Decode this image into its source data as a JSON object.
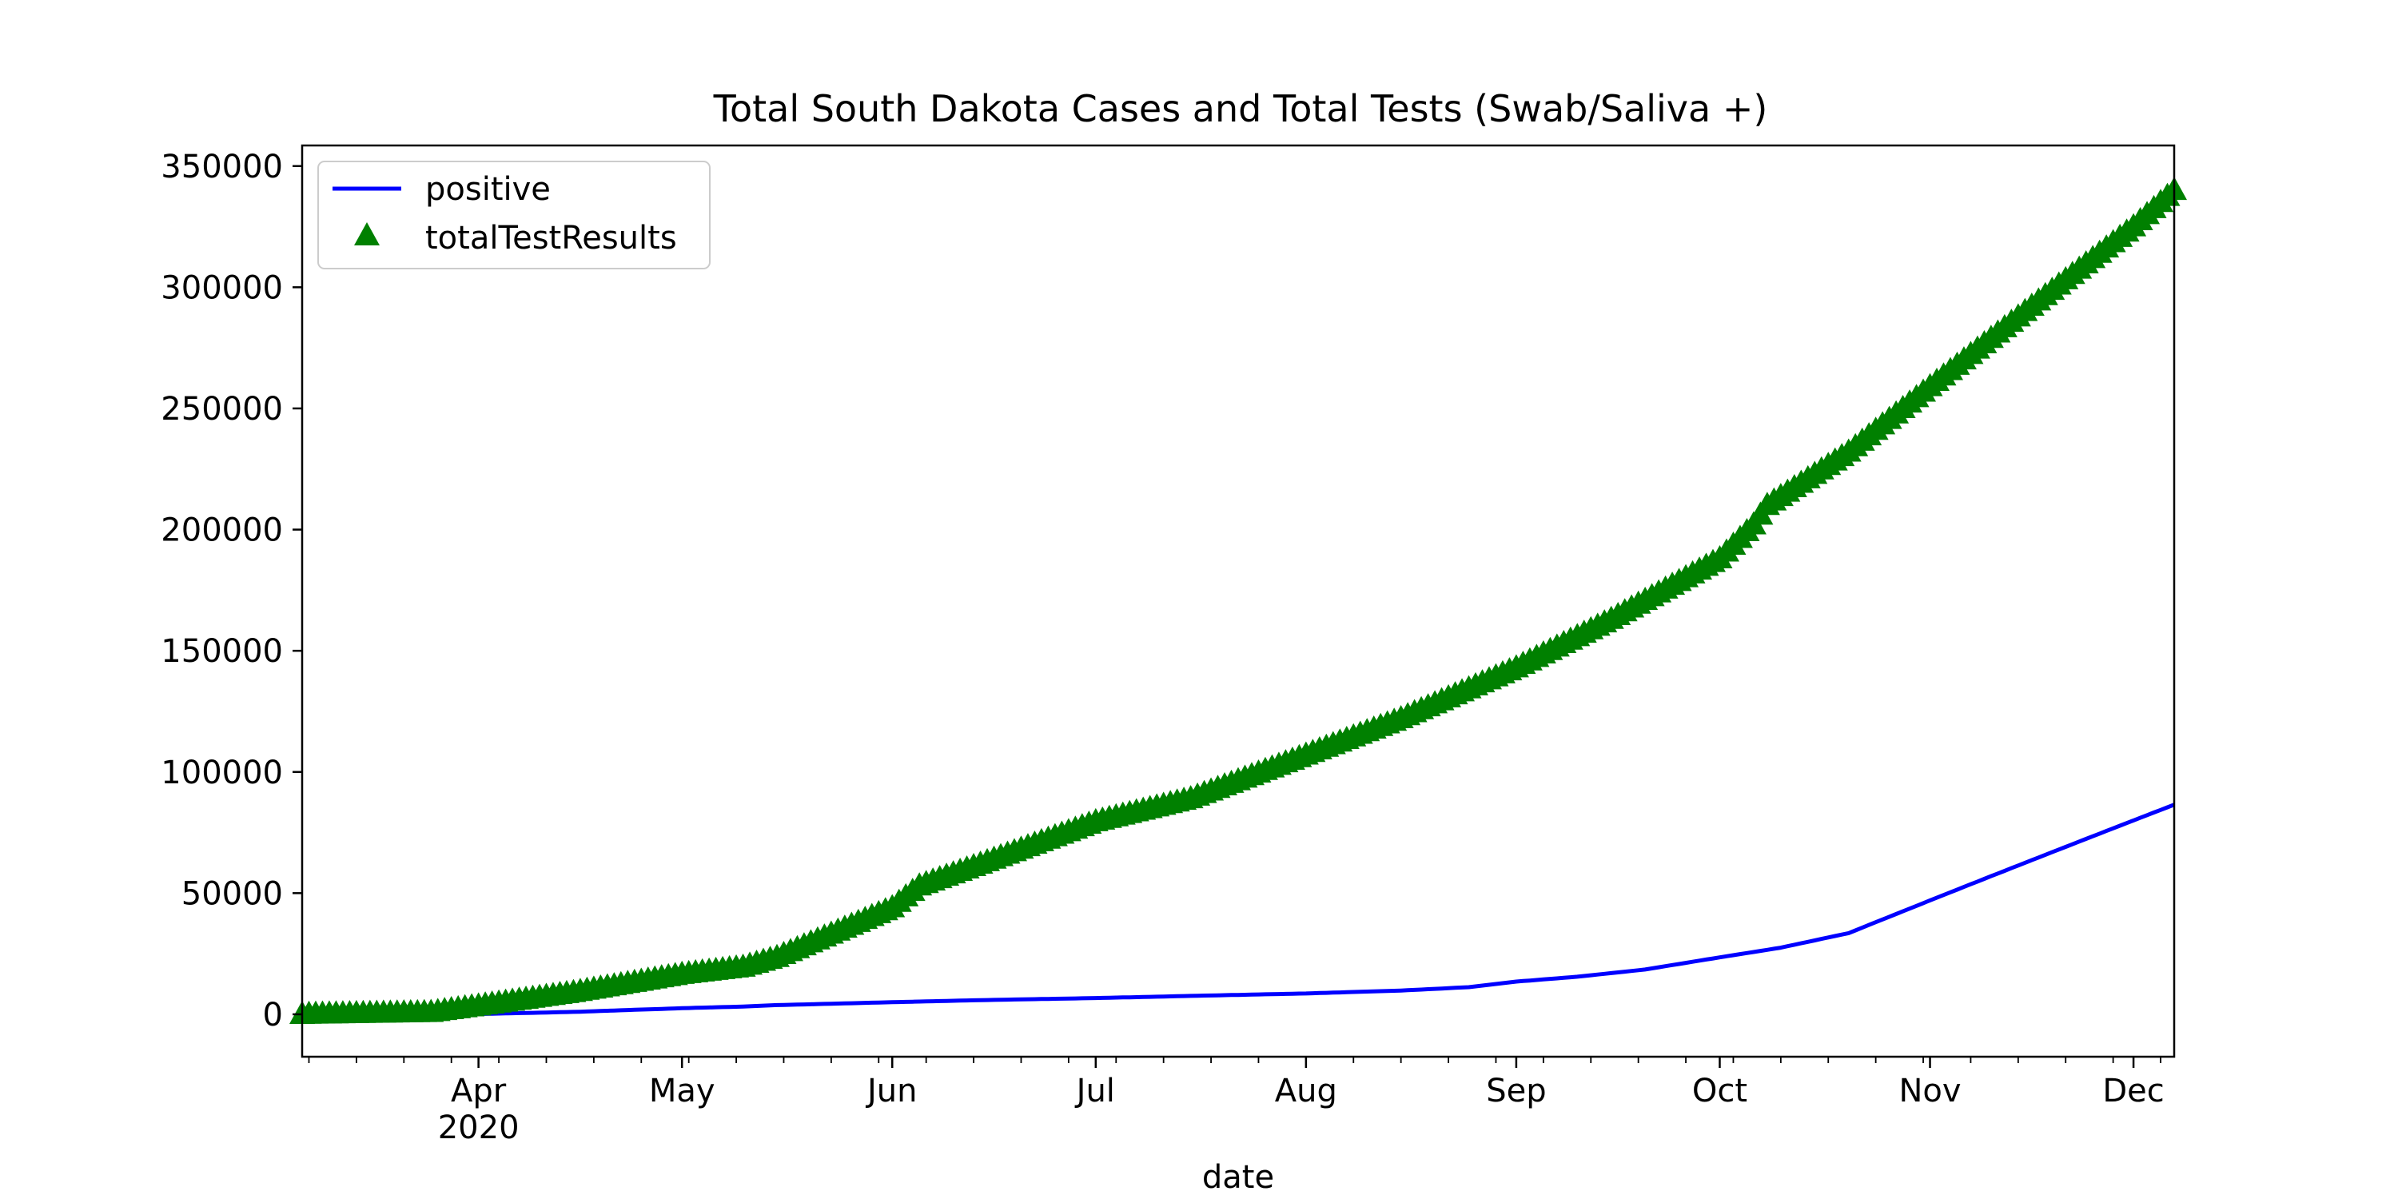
{
  "chart_data": {
    "type": "line",
    "title": "Total South Dakota Cases and Total Tests (Swab/Saliva +)",
    "xlabel": "date",
    "ylabel": "",
    "x_range": [
      "2020-03-06",
      "2020-12-07"
    ],
    "ylim": [
      -17500,
      358500
    ],
    "grid": false,
    "legend_position": "upper-left",
    "x_ticks": [
      {
        "date": "2020-04-01",
        "label": "Apr",
        "sublabel": "2020"
      },
      {
        "date": "2020-05-01",
        "label": "May",
        "sublabel": ""
      },
      {
        "date": "2020-06-01",
        "label": "Jun",
        "sublabel": ""
      },
      {
        "date": "2020-07-01",
        "label": "Jul",
        "sublabel": ""
      },
      {
        "date": "2020-08-01",
        "label": "Aug",
        "sublabel": ""
      },
      {
        "date": "2020-09-01",
        "label": "Sep",
        "sublabel": ""
      },
      {
        "date": "2020-10-01",
        "label": "Oct",
        "sublabel": ""
      },
      {
        "date": "2020-11-01",
        "label": "Nov",
        "sublabel": ""
      },
      {
        "date": "2020-12-01",
        "label": "Dec",
        "sublabel": ""
      }
    ],
    "y_ticks": [
      0,
      50000,
      100000,
      150000,
      200000,
      250000,
      300000,
      350000
    ],
    "series": [
      {
        "name": "positive",
        "style": "line",
        "color": "#0000ff",
        "points": [
          [
            "2020-03-06",
            0
          ],
          [
            "2020-03-15",
            9
          ],
          [
            "2020-03-22",
            21
          ],
          [
            "2020-04-01",
            129
          ],
          [
            "2020-04-15",
            988
          ],
          [
            "2020-05-01",
            2525
          ],
          [
            "2020-05-10",
            3200
          ],
          [
            "2020-05-15",
            3800
          ],
          [
            "2020-06-01",
            5000
          ],
          [
            "2020-06-15",
            5900
          ],
          [
            "2020-07-01",
            6700
          ],
          [
            "2020-07-15",
            7600
          ],
          [
            "2020-08-01",
            8600
          ],
          [
            "2020-08-15",
            9800
          ],
          [
            "2020-08-25",
            11200
          ],
          [
            "2020-09-01",
            13500
          ],
          [
            "2020-09-10",
            15500
          ],
          [
            "2020-09-20",
            18500
          ],
          [
            "2020-10-01",
            23500
          ],
          [
            "2020-10-10",
            27500
          ],
          [
            "2020-10-20",
            33500
          ],
          [
            "2020-11-01",
            47000
          ],
          [
            "2020-11-10",
            57000
          ],
          [
            "2020-11-20",
            68000
          ],
          [
            "2020-12-01",
            80000
          ],
          [
            "2020-12-07",
            86500
          ]
        ]
      },
      {
        "name": "totalTestResults",
        "style": "marker",
        "marker": "triangle-up",
        "color": "#008000",
        "points": [
          [
            "2020-03-06",
            0
          ],
          [
            "2020-03-15",
            400
          ],
          [
            "2020-03-25",
            800
          ],
          [
            "2020-04-01",
            3500
          ],
          [
            "2020-04-15",
            9000
          ],
          [
            "2020-05-01",
            16500
          ],
          [
            "2020-05-10",
            19500
          ],
          [
            "2020-05-15",
            23500
          ],
          [
            "2020-06-01",
            44000
          ],
          [
            "2020-06-05",
            53000
          ],
          [
            "2020-06-15",
            63000
          ],
          [
            "2020-07-01",
            79500
          ],
          [
            "2020-07-15",
            89000
          ],
          [
            "2020-08-01",
            107000
          ],
          [
            "2020-08-15",
            122000
          ],
          [
            "2020-09-01",
            143000
          ],
          [
            "2020-09-15",
            163000
          ],
          [
            "2020-10-01",
            188000
          ],
          [
            "2020-10-06",
            202000
          ],
          [
            "2020-10-08",
            210000
          ],
          [
            "2020-10-20",
            232000
          ],
          [
            "2020-11-01",
            259000
          ],
          [
            "2020-11-15",
            290000
          ],
          [
            "2020-12-01",
            325000
          ],
          [
            "2020-12-07",
            340000
          ]
        ]
      }
    ]
  }
}
